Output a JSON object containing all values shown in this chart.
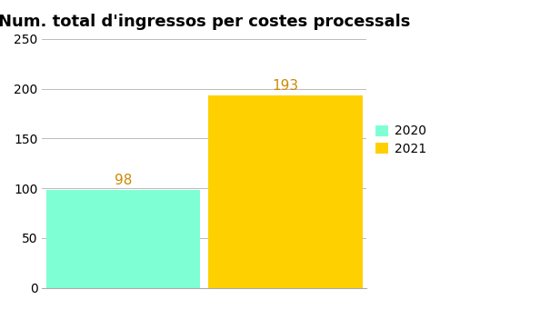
{
  "title": "Num. total d'ingressos per costes processals",
  "categories": [
    "2020",
    "2021"
  ],
  "values": [
    98,
    193
  ],
  "bar_colors": [
    "#7FFFD4",
    "#FFD000"
  ],
  "bar_positions": [
    0.5,
    1.5
  ],
  "bar_width": 0.95,
  "ylim": [
    0,
    250
  ],
  "yticks": [
    0,
    50,
    100,
    150,
    200,
    250
  ],
  "legend_labels": [
    "2020",
    "2021"
  ],
  "legend_colors": [
    "#7FFFD4",
    "#FFD000"
  ],
  "title_fontsize": 13,
  "label_fontsize": 11,
  "label_color": "#CC8800",
  "background_color": "#ffffff",
  "grid_color": "#bbbbbb"
}
